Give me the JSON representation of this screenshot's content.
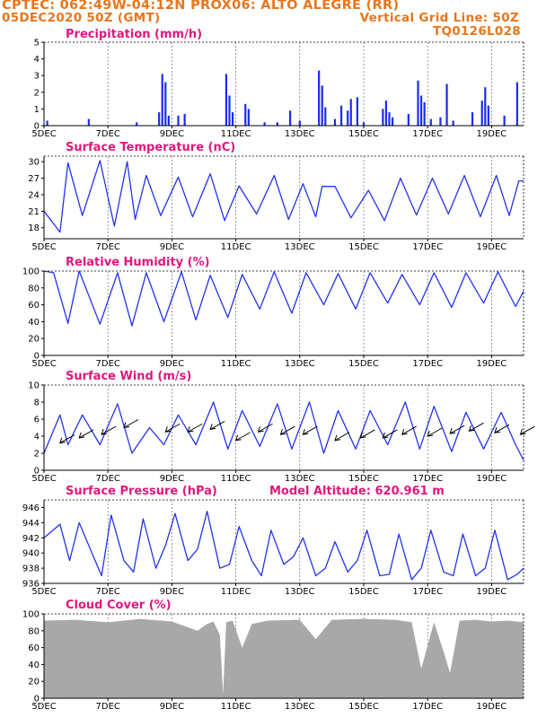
{
  "header": {
    "station": "CPTEC:  062:49W-04:12N  PROX06: ALTO ALEGRE (RR)",
    "date": "05DEC2020 50Z (GMT)",
    "grid_note": "Vertical Grid Line: 50Z",
    "model_code": "TQ0126L028"
  },
  "model_altitude": "Model Altitude: 620.961 m",
  "colors": {
    "header": "#e8761c",
    "title": "#e0177d",
    "line": "#2233ee",
    "bar": "#1a2cf0",
    "cloud": "#a8a8a8"
  },
  "x_ticks": [
    "5DEC",
    "7DEC",
    "9DEC",
    "11DEC",
    "13DEC",
    "15DEC",
    "17DEC",
    "19DEC"
  ],
  "chart_data": [
    {
      "id": "precip",
      "type": "bar",
      "title": "Precipitation (mm/h)",
      "ylim": [
        0,
        5
      ],
      "yticks": [
        "0",
        "1",
        "2",
        "3",
        "4",
        "5"
      ],
      "x_range_days": [
        5,
        20
      ],
      "x": [
        5.1,
        6.4,
        7.9,
        8.6,
        8.7,
        8.8,
        8.9,
        9.2,
        9.4,
        10.7,
        10.8,
        10.9,
        11.3,
        11.4,
        11.9,
        12.3,
        12.7,
        13.0,
        13.6,
        13.7,
        13.8,
        14.1,
        14.3,
        14.5,
        14.6,
        14.8,
        15.0,
        15.6,
        15.7,
        15.8,
        15.9,
        16.4,
        16.7,
        16.8,
        16.9,
        17.1,
        17.4,
        17.6,
        17.8,
        18.4,
        18.7,
        18.8,
        18.9,
        19.4,
        19.8
      ],
      "values": [
        0.3,
        0.4,
        0.2,
        0.8,
        3.1,
        2.6,
        0.6,
        0.6,
        0.7,
        3.1,
        1.8,
        0.8,
        1.3,
        1.0,
        0.2,
        0.2,
        0.9,
        0.3,
        3.3,
        2.4,
        1.1,
        0.4,
        1.2,
        0.9,
        1.6,
        1.7,
        0.2,
        1.0,
        1.5,
        0.8,
        0.5,
        0.7,
        2.7,
        1.8,
        1.4,
        0.4,
        0.5,
        2.5,
        0.3,
        0.8,
        1.5,
        2.3,
        1.2,
        0.6,
        2.6
      ]
    },
    {
      "id": "temp",
      "type": "line",
      "title": "Surface Temperature (nC)",
      "ylim": [
        16,
        31
      ],
      "yticks": [
        "18",
        "21",
        "24",
        "27",
        "30"
      ],
      "x": [
        5.0,
        5.5,
        5.75,
        6.2,
        6.75,
        7.2,
        7.6,
        7.85,
        8.2,
        8.65,
        9.2,
        9.65,
        10.2,
        10.65,
        11.1,
        11.65,
        12.2,
        12.65,
        13.1,
        13.5,
        13.7,
        14.1,
        14.6,
        15.15,
        15.65,
        16.15,
        16.65,
        17.15,
        17.65,
        18.15,
        18.65,
        19.15,
        19.55,
        19.85,
        20.0
      ],
      "values": [
        21,
        17.2,
        29.8,
        20.2,
        30.2,
        18.3,
        30.0,
        19.5,
        27.5,
        20.2,
        27.2,
        20.0,
        27.8,
        19.3,
        25.6,
        20.5,
        27.5,
        19.5,
        26.0,
        20.0,
        25.5,
        25.5,
        19.8,
        24.8,
        19.3,
        27.0,
        20.3,
        27.0,
        20.5,
        27.5,
        20.0,
        27.5,
        20.2,
        26.5,
        26.5
      ]
    },
    {
      "id": "rh",
      "type": "line",
      "title": "Relative Humidity (%)",
      "ylim": [
        0,
        100
      ],
      "yticks": [
        "0",
        "20",
        "40",
        "60",
        "80",
        "100"
      ],
      "x": [
        5.0,
        5.3,
        5.75,
        6.1,
        6.75,
        7.3,
        7.75,
        8.2,
        8.75,
        9.3,
        9.75,
        10.2,
        10.75,
        11.2,
        11.75,
        12.2,
        12.75,
        13.2,
        13.75,
        14.2,
        14.75,
        15.2,
        15.75,
        16.2,
        16.75,
        17.2,
        17.75,
        18.2,
        18.75,
        19.2,
        19.75,
        20.0
      ],
      "values": [
        100,
        98,
        38,
        100,
        37,
        98,
        35,
        98,
        40,
        99,
        42,
        95,
        45,
        96,
        55,
        99,
        50,
        98,
        60,
        97,
        55,
        98,
        62,
        96,
        60,
        98,
        57,
        98,
        62,
        99,
        58,
        76
      ]
    },
    {
      "id": "wind",
      "type": "line",
      "title": "Surface Wind (m/s)",
      "ylim": [
        0,
        10
      ],
      "yticks": [
        "0",
        "2",
        "4",
        "6",
        "8",
        "10"
      ],
      "x": [
        5.0,
        5.5,
        5.75,
        6.2,
        6.75,
        7.3,
        7.75,
        8.3,
        8.75,
        9.2,
        9.75,
        10.3,
        10.75,
        11.2,
        11.75,
        12.3,
        12.75,
        13.3,
        13.75,
        14.2,
        14.75,
        15.2,
        15.75,
        16.3,
        16.75,
        17.2,
        17.75,
        18.2,
        18.75,
        19.3,
        19.75,
        20.0
      ],
      "values": [
        2,
        6.5,
        3,
        6.5,
        3,
        7.8,
        2,
        5,
        3,
        6.5,
        3,
        8,
        2.5,
        7,
        2.8,
        7.8,
        2.5,
        8,
        2,
        7,
        2.5,
        7,
        3,
        8,
        2.5,
        7.5,
        2.2,
        6.8,
        2.5,
        6.8,
        3,
        1.2
      ],
      "arrows_x": [
        5.5,
        6.1,
        6.8,
        7.5,
        8.8,
        9.5,
        10.2,
        11,
        11.7,
        12.4,
        13.1,
        14.1,
        14.9,
        15.6,
        16.2,
        17,
        17.7,
        18.3,
        19.1,
        19.9
      ],
      "arrows_y": [
        3.2,
        3.8,
        4.2,
        5,
        4.5,
        4.5,
        4.8,
        3.5,
        4.5,
        4.2,
        4.2,
        3.5,
        3.8,
        3.8,
        4.2,
        4,
        4.3,
        4.6,
        4.4,
        4.2
      ]
    },
    {
      "id": "pres",
      "type": "line",
      "title": "Surface Pressure (hPa)",
      "ylim": [
        936,
        947
      ],
      "yticks": [
        "936",
        "938",
        "940",
        "942",
        "944",
        "946"
      ],
      "x": [
        5.0,
        5.5,
        5.8,
        6.1,
        6.5,
        6.8,
        7.1,
        7.5,
        7.8,
        8.1,
        8.5,
        8.8,
        9.1,
        9.5,
        9.8,
        10.1,
        10.5,
        10.8,
        11.1,
        11.5,
        11.8,
        12.1,
        12.5,
        12.8,
        13.1,
        13.5,
        13.8,
        14.1,
        14.5,
        14.8,
        15.1,
        15.5,
        15.8,
        16.1,
        16.5,
        16.8,
        17.1,
        17.5,
        17.8,
        18.1,
        18.5,
        18.8,
        19.1,
        19.5,
        19.8,
        20.0
      ],
      "values": [
        942,
        943.8,
        939,
        944,
        940,
        937,
        945,
        939,
        937.5,
        944.5,
        938,
        941,
        945.2,
        939,
        940.5,
        945.5,
        938,
        938.5,
        943.5,
        939,
        937,
        943,
        938.5,
        939.5,
        942,
        937,
        938,
        941.5,
        937.5,
        939,
        943,
        937,
        937.2,
        942.5,
        936.5,
        938,
        943,
        937.5,
        937,
        942.5,
        937,
        938,
        943,
        936.5,
        937.2,
        938
      ]
    },
    {
      "id": "cloud",
      "type": "area",
      "title": "Cloud Cover (%)",
      "ylim": [
        0,
        100
      ],
      "yticks": [
        "0",
        "20",
        "40",
        "60",
        "80",
        "100"
      ],
      "x": [
        5.0,
        6.0,
        7.0,
        8.0,
        9.0,
        9.8,
        10.1,
        10.3,
        10.5,
        10.6,
        10.7,
        10.9,
        11.2,
        11.5,
        12.0,
        13.0,
        13.5,
        14.0,
        15.0,
        16.0,
        16.5,
        16.8,
        17.2,
        17.5,
        17.7,
        18.0,
        18.5,
        19.0,
        19.5,
        20.0
      ],
      "values": [
        92,
        93,
        90,
        94,
        91,
        80,
        88,
        91,
        75,
        5,
        90,
        92,
        60,
        88,
        92,
        93,
        70,
        93,
        94,
        93,
        90,
        35,
        90,
        55,
        30,
        92,
        93,
        91,
        92,
        90
      ]
    }
  ]
}
